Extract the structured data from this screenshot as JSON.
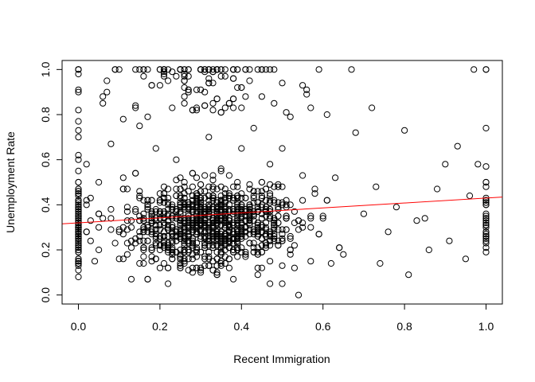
{
  "chart_data": {
    "type": "scatter",
    "title": "",
    "xlabel": "Recent Immigration",
    "ylabel": "Unemployment Rate",
    "xlim": [
      -0.04,
      1.04
    ],
    "ylim": [
      -0.04,
      1.04
    ],
    "x_ticks": [
      "0.0",
      "0.2",
      "0.4",
      "0.6",
      "0.8",
      "1.0"
    ],
    "y_ticks": [
      "0.0",
      "0.2",
      "0.4",
      "0.6",
      "0.8",
      "1.0"
    ],
    "grid": false,
    "legend": "none",
    "marker": "open-circle",
    "point_color": "#000000",
    "n_points_approx": 1500,
    "fit_line": {
      "intercept": 0.32,
      "slope": 0.11,
      "color": "#ff0000"
    },
    "points": [
      [
        0.0,
        0.98
      ],
      [
        0.0,
        1.0
      ],
      [
        0.0,
        0.9
      ],
      [
        0.0,
        0.77
      ],
      [
        0.0,
        0.73
      ],
      [
        0.0,
        0.7
      ],
      [
        0.0,
        0.62
      ],
      [
        0.0,
        0.6
      ],
      [
        0.0,
        0.55
      ],
      [
        0.0,
        0.5
      ],
      [
        0.0,
        0.46
      ],
      [
        0.0,
        0.42
      ],
      [
        0.0,
        0.38
      ],
      [
        0.0,
        0.35
      ],
      [
        0.0,
        0.32
      ],
      [
        0.0,
        0.28
      ],
      [
        0.0,
        0.25
      ],
      [
        0.0,
        0.2
      ],
      [
        0.0,
        0.15
      ],
      [
        0.0,
        0.11
      ],
      [
        0.0,
        0.08
      ],
      [
        0.02,
        0.58
      ],
      [
        0.02,
        0.42
      ],
      [
        0.03,
        0.33
      ],
      [
        0.03,
        0.24
      ],
      [
        0.04,
        0.15
      ],
      [
        0.05,
        0.5
      ],
      [
        0.05,
        0.2
      ],
      [
        0.06,
        0.88
      ],
      [
        0.06,
        0.85
      ],
      [
        0.07,
        0.9
      ],
      [
        0.08,
        0.67
      ],
      [
        0.08,
        0.38
      ],
      [
        0.09,
        1.0
      ],
      [
        0.1,
        1.0
      ],
      [
        0.11,
        0.78
      ],
      [
        0.11,
        0.52
      ],
      [
        0.12,
        0.29
      ],
      [
        0.13,
        0.07
      ],
      [
        0.14,
        0.84
      ],
      [
        0.15,
        0.75
      ],
      [
        0.15,
        0.43
      ],
      [
        0.16,
        0.33
      ],
      [
        0.16,
        0.14
      ],
      [
        0.17,
        0.79
      ],
      [
        0.18,
        0.17
      ],
      [
        0.19,
        0.65
      ],
      [
        0.2,
        1.0
      ],
      [
        0.2,
        0.42
      ],
      [
        0.2,
        0.12
      ],
      [
        0.21,
        1.0
      ],
      [
        0.22,
        0.3
      ],
      [
        0.22,
        0.05
      ],
      [
        0.23,
        0.83
      ],
      [
        0.24,
        0.6
      ],
      [
        0.25,
        0.25
      ],
      [
        0.26,
        0.95
      ],
      [
        0.27,
        1.0
      ],
      [
        0.28,
        0.48
      ],
      [
        0.28,
        0.1
      ],
      [
        0.3,
        1.0
      ],
      [
        0.31,
        0.9
      ],
      [
        0.31,
        0.37
      ],
      [
        0.32,
        0.7
      ],
      [
        0.33,
        0.22
      ],
      [
        0.34,
        1.0
      ],
      [
        0.35,
        0.55
      ],
      [
        0.36,
        0.83
      ],
      [
        0.37,
        0.3
      ],
      [
        0.38,
        0.07
      ],
      [
        0.39,
        1.0
      ],
      [
        0.4,
        0.65
      ],
      [
        0.4,
        0.45
      ],
      [
        0.41,
        0.18
      ],
      [
        0.42,
        0.95
      ],
      [
        0.43,
        0.74
      ],
      [
        0.44,
        0.38
      ],
      [
        0.45,
        0.12
      ],
      [
        0.46,
        1.0
      ],
      [
        0.47,
        0.58
      ],
      [
        0.48,
        0.85
      ],
      [
        0.48,
        0.27
      ],
      [
        0.5,
        0.65
      ],
      [
        0.5,
        0.05
      ],
      [
        0.51,
        0.4
      ],
      [
        0.52,
        0.79
      ],
      [
        0.53,
        0.22
      ],
      [
        0.54,
        0.0
      ],
      [
        0.55,
        0.53
      ],
      [
        0.56,
        0.89
      ],
      [
        0.57,
        0.3
      ],
      [
        0.58,
        0.45
      ],
      [
        0.59,
        1.0
      ],
      [
        0.6,
        0.35
      ],
      [
        0.61,
        0.8
      ],
      [
        0.62,
        0.14
      ],
      [
        0.63,
        0.52
      ],
      [
        0.65,
        0.18
      ],
      [
        0.67,
        1.0
      ],
      [
        0.68,
        0.72
      ],
      [
        0.7,
        0.36
      ],
      [
        0.72,
        0.83
      ],
      [
        0.73,
        0.48
      ],
      [
        0.74,
        0.14
      ],
      [
        0.76,
        0.28
      ],
      [
        0.78,
        0.39
      ],
      [
        0.8,
        0.73
      ],
      [
        0.81,
        0.09
      ],
      [
        0.83,
        0.33
      ],
      [
        0.85,
        0.34
      ],
      [
        0.86,
        0.2
      ],
      [
        0.88,
        0.47
      ],
      [
        0.9,
        0.58
      ],
      [
        0.91,
        0.24
      ],
      [
        0.93,
        0.66
      ],
      [
        0.95,
        0.16
      ],
      [
        0.96,
        0.44
      ],
      [
        0.97,
        1.0
      ],
      [
        0.98,
        0.58
      ],
      [
        1.0,
        0.74
      ],
      [
        1.0,
        0.57
      ],
      [
        1.0,
        0.5
      ],
      [
        1.0,
        0.42
      ],
      [
        1.0,
        0.33
      ],
      [
        1.0,
        0.25
      ],
      [
        1.0,
        0.19
      ]
    ]
  }
}
